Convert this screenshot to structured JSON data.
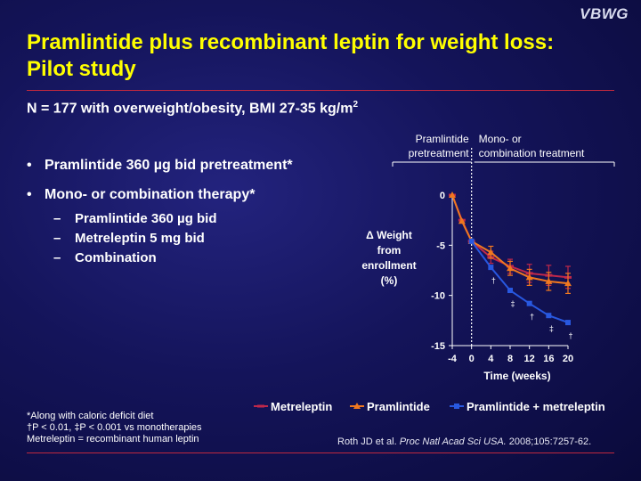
{
  "logo": "VBWG",
  "title": "Pramlintide plus recombinant leptin for weight loss: Pilot study",
  "subtitle": {
    "text": "N = 177 with overweight/obesity, BMI 27-35 kg/m",
    "sup": "2"
  },
  "bullets": [
    {
      "text": "Pramlintide 360 µg bid pretreatment*"
    },
    {
      "text": "Mono- or combination therapy*"
    }
  ],
  "sub_bullets": [
    "Pramlintide 360 µg bid",
    "Metreleptin 5 mg bid",
    "Combination"
  ],
  "footnotes": [
    "*Along with caloric deficit diet",
    "†P < 0.01, ‡P < 0.001 vs monotherapies",
    "Metreleptin = recombinant human leptin"
  ],
  "citation": {
    "authors": "Roth JD et al. ",
    "journal": "Proc Natl Acad Sci USA.",
    "rest": " 2008;105:7257-62."
  },
  "colors": {
    "title": "#ffff00",
    "metreleptin": "#c0284a",
    "pramlintide": "#f07820",
    "combination": "#2858e0"
  },
  "chart_data": {
    "type": "line",
    "x": [
      -4,
      -2,
      0,
      2,
      4,
      8,
      12,
      16,
      20
    ],
    "xticks": [
      "-4",
      "0",
      "4",
      "8",
      "12",
      "16",
      "20"
    ],
    "xlabel": "Time (weeks)",
    "ylabel": "Δ Weight from enrollment (%)",
    "ylabel_lines": [
      "Δ Weight",
      "from",
      "enrollment",
      "(%)"
    ],
    "yticks": [
      "0",
      "-5",
      "-10",
      "-15"
    ],
    "xlim": [
      -4,
      20
    ],
    "ylim": [
      -15,
      0
    ],
    "phase_labels": [
      {
        "lines": [
          "Pramlintide",
          "pretreatment"
        ]
      },
      {
        "lines": [
          "Mono- or",
          "combination treatment"
        ]
      }
    ],
    "phase_divider_x": 0,
    "series": [
      {
        "name": "Metreleptin",
        "color": "#c0284a",
        "marker": "dash",
        "points": [
          [
            -4,
            0
          ],
          [
            -2,
            -2.5
          ],
          [
            0,
            -4.6
          ],
          [
            4,
            -6.2
          ],
          [
            8,
            -7.1
          ],
          [
            12,
            -7.8
          ],
          [
            16,
            -8.0
          ],
          [
            20,
            -8.2
          ]
        ],
        "err": [
          0,
          0,
          0,
          0.6,
          0.7,
          0.9,
          1.0,
          1.1
        ]
      },
      {
        "name": "Pramlintide",
        "color": "#f07820",
        "marker": "triangle",
        "points": [
          [
            -4,
            0
          ],
          [
            -2,
            -2.6
          ],
          [
            0,
            -4.6
          ],
          [
            4,
            -5.7
          ],
          [
            8,
            -7.3
          ],
          [
            12,
            -8.2
          ],
          [
            16,
            -8.6
          ],
          [
            20,
            -8.8
          ]
        ],
        "err": [
          0,
          0,
          0,
          0.6,
          0.7,
          0.8,
          0.9,
          1.0
        ]
      },
      {
        "name": "Pramlintide + metreleptin",
        "color": "#2858e0",
        "marker": "square",
        "points": [
          [
            0,
            -4.6
          ],
          [
            4,
            -7.2
          ],
          [
            8,
            -9.5
          ],
          [
            12,
            -10.8
          ],
          [
            16,
            -12.0
          ],
          [
            20,
            -12.7
          ]
        ],
        "err": [
          0,
          0,
          0,
          0,
          0,
          0
        ]
      }
    ],
    "significance": [
      {
        "x": 4,
        "y": -7.2,
        "mark": "†"
      },
      {
        "x": 8,
        "y": -9.5,
        "mark": "‡"
      },
      {
        "x": 12,
        "y": -10.8,
        "mark": "†"
      },
      {
        "x": 16,
        "y": -12.0,
        "mark": "‡"
      },
      {
        "x": 20,
        "y": -12.7,
        "mark": "†"
      }
    ]
  }
}
